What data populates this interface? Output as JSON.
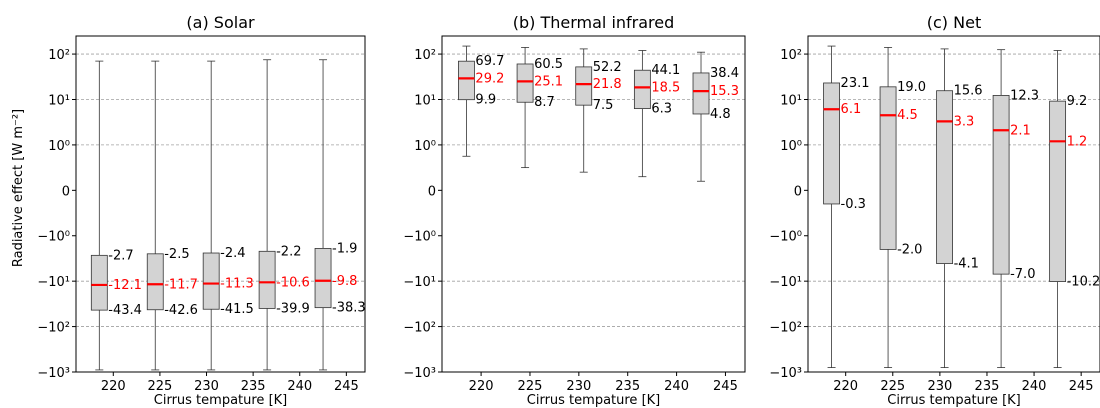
{
  "figure": {
    "ylabel": "Radiative effect [W m⁻²]",
    "xlabel": "Cirrus tempature [K]"
  },
  "colors": {
    "box_fill": "#d3d3d3",
    "median": "#ff0000",
    "median_label": "#ff0000",
    "grid": "#a0a0a0",
    "axis": "#000000"
  },
  "chart_data": [
    {
      "type": "box",
      "title": "(a) Solar",
      "xlabel": "Cirrus tempature [K]",
      "ylabel": "Radiative effect [W m⁻²]",
      "yscale": "symlog",
      "ylim": [
        -1000,
        250
      ],
      "xlim": [
        216,
        247
      ],
      "xticks": [
        220,
        225,
        230,
        235,
        240,
        245
      ],
      "yticks": [
        {
          "value": 100,
          "label": "10²"
        },
        {
          "value": 10,
          "label": "10¹"
        },
        {
          "value": 1,
          "label": "10⁰"
        },
        {
          "value": 0,
          "label": "0"
        },
        {
          "value": -1,
          "label": "−10⁰"
        },
        {
          "value": -10,
          "label": "−10¹"
        },
        {
          "value": -100,
          "label": "−10²"
        },
        {
          "value": -1000,
          "label": "−10³"
        }
      ],
      "grid": "horizontal dashed at major ticks",
      "boxes": [
        {
          "x": 218.5,
          "whisker_high": 70,
          "q3": -2.7,
          "median": -12.1,
          "q1": -43.4,
          "whisker_low": -900,
          "q3_label": "-2.7",
          "median_label": "-12.1",
          "q1_label": "-43.4"
        },
        {
          "x": 224.5,
          "whisker_high": 70,
          "q3": -2.5,
          "median": -11.7,
          "q1": -42.6,
          "whisker_low": -900,
          "q3_label": "-2.5",
          "median_label": "-11.7",
          "q1_label": "-42.6"
        },
        {
          "x": 230.5,
          "whisker_high": 70,
          "q3": -2.4,
          "median": -11.3,
          "q1": -41.5,
          "whisker_low": -900,
          "q3_label": "-2.4",
          "median_label": "-11.3",
          "q1_label": "-41.5"
        },
        {
          "x": 236.5,
          "whisker_high": 75,
          "q3": -2.2,
          "median": -10.6,
          "q1": -39.9,
          "whisker_low": -900,
          "q3_label": "-2.2",
          "median_label": "-10.6",
          "q1_label": "-39.9"
        },
        {
          "x": 242.5,
          "whisker_high": 75,
          "q3": -1.9,
          "median": -9.8,
          "q1": -38.3,
          "whisker_low": -900,
          "q3_label": "-1.9",
          "median_label": "-9.8",
          "q1_label": "-38.3"
        }
      ]
    },
    {
      "type": "box",
      "title": "(b) Thermal infrared",
      "xlabel": "Cirrus tempature [K]",
      "ylabel": "",
      "yscale": "symlog",
      "ylim": [
        -1000,
        250
      ],
      "xlim": [
        216,
        247
      ],
      "xticks": [
        220,
        225,
        230,
        235,
        240,
        245
      ],
      "yticks": [
        {
          "value": 100,
          "label": "10²"
        },
        {
          "value": 10,
          "label": "10¹"
        },
        {
          "value": 1,
          "label": "10⁰"
        },
        {
          "value": 0,
          "label": "0"
        },
        {
          "value": -1,
          "label": "−10⁰"
        },
        {
          "value": -10,
          "label": "−10¹"
        },
        {
          "value": -100,
          "label": "−10²"
        },
        {
          "value": -1000,
          "label": "−10³"
        }
      ],
      "grid": "horizontal dashed at major ticks",
      "boxes": [
        {
          "x": 218.5,
          "whisker_high": 150,
          "q3": 69.7,
          "median": 29.2,
          "q1": 9.9,
          "whisker_low": 0.75,
          "q3_label": "69.7",
          "median_label": "29.2",
          "q1_label": "9.9"
        },
        {
          "x": 224.5,
          "whisker_high": 140,
          "q3": 60.5,
          "median": 25.1,
          "q1": 8.7,
          "whisker_low": 0.5,
          "q3_label": "60.5",
          "median_label": "25.1",
          "q1_label": "8.7"
        },
        {
          "x": 230.5,
          "whisker_high": 130,
          "q3": 52.2,
          "median": 21.8,
          "q1": 7.5,
          "whisker_low": 0.4,
          "q3_label": "52.2",
          "median_label": "21.8",
          "q1_label": "7.5"
        },
        {
          "x": 236.5,
          "whisker_high": 120,
          "q3": 44.1,
          "median": 18.5,
          "q1": 6.3,
          "whisker_low": 0.3,
          "q3_label": "44.1",
          "median_label": "18.5",
          "q1_label": "6.3"
        },
        {
          "x": 242.5,
          "whisker_high": 110,
          "q3": 38.4,
          "median": 15.3,
          "q1": 4.8,
          "whisker_low": 0.2,
          "q3_label": "38.4",
          "median_label": "15.3",
          "q1_label": "4.8"
        }
      ]
    },
    {
      "type": "box",
      "title": "(c) Net",
      "xlabel": "Cirrus tempature [K]",
      "ylabel": "",
      "yscale": "symlog",
      "ylim": [
        -1000,
        250
      ],
      "xlim": [
        216,
        247
      ],
      "xticks": [
        220,
        225,
        230,
        235,
        240,
        245
      ],
      "yticks": [
        {
          "value": 100,
          "label": "10²"
        },
        {
          "value": 10,
          "label": "10¹"
        },
        {
          "value": 1,
          "label": "10⁰"
        },
        {
          "value": 0,
          "label": "0"
        },
        {
          "value": -1,
          "label": "−10⁰"
        },
        {
          "value": -10,
          "label": "−10¹"
        },
        {
          "value": -100,
          "label": "−10²"
        },
        {
          "value": -1000,
          "label": "−10³"
        }
      ],
      "grid": "horizontal dashed at major ticks",
      "boxes": [
        {
          "x": 218.5,
          "whisker_high": 150,
          "q3": 23.1,
          "median": 6.1,
          "q1": -0.3,
          "whisker_low": -800,
          "q3_label": "23.1",
          "median_label": "6.1",
          "q1_label": "-0.3"
        },
        {
          "x": 224.5,
          "whisker_high": 140,
          "q3": 19.0,
          "median": 4.5,
          "q1": -2.0,
          "whisker_low": -800,
          "q3_label": "19.0",
          "median_label": "4.5",
          "q1_label": "-2.0"
        },
        {
          "x": 230.5,
          "whisker_high": 130,
          "q3": 15.6,
          "median": 3.3,
          "q1": -4.1,
          "whisker_low": -800,
          "q3_label": "15.6",
          "median_label": "3.3",
          "q1_label": "-4.1"
        },
        {
          "x": 236.5,
          "whisker_high": 125,
          "q3": 12.3,
          "median": 2.1,
          "q1": -7.0,
          "whisker_low": -800,
          "q3_label": "12.3",
          "median_label": "2.1",
          "q1_label": "-7.0"
        },
        {
          "x": 242.5,
          "whisker_high": 120,
          "q3": 9.2,
          "median": 1.2,
          "q1": -10.2,
          "whisker_low": -800,
          "q3_label": "9.2",
          "median_label": "1.2",
          "q1_label": "-10.2"
        }
      ]
    }
  ]
}
